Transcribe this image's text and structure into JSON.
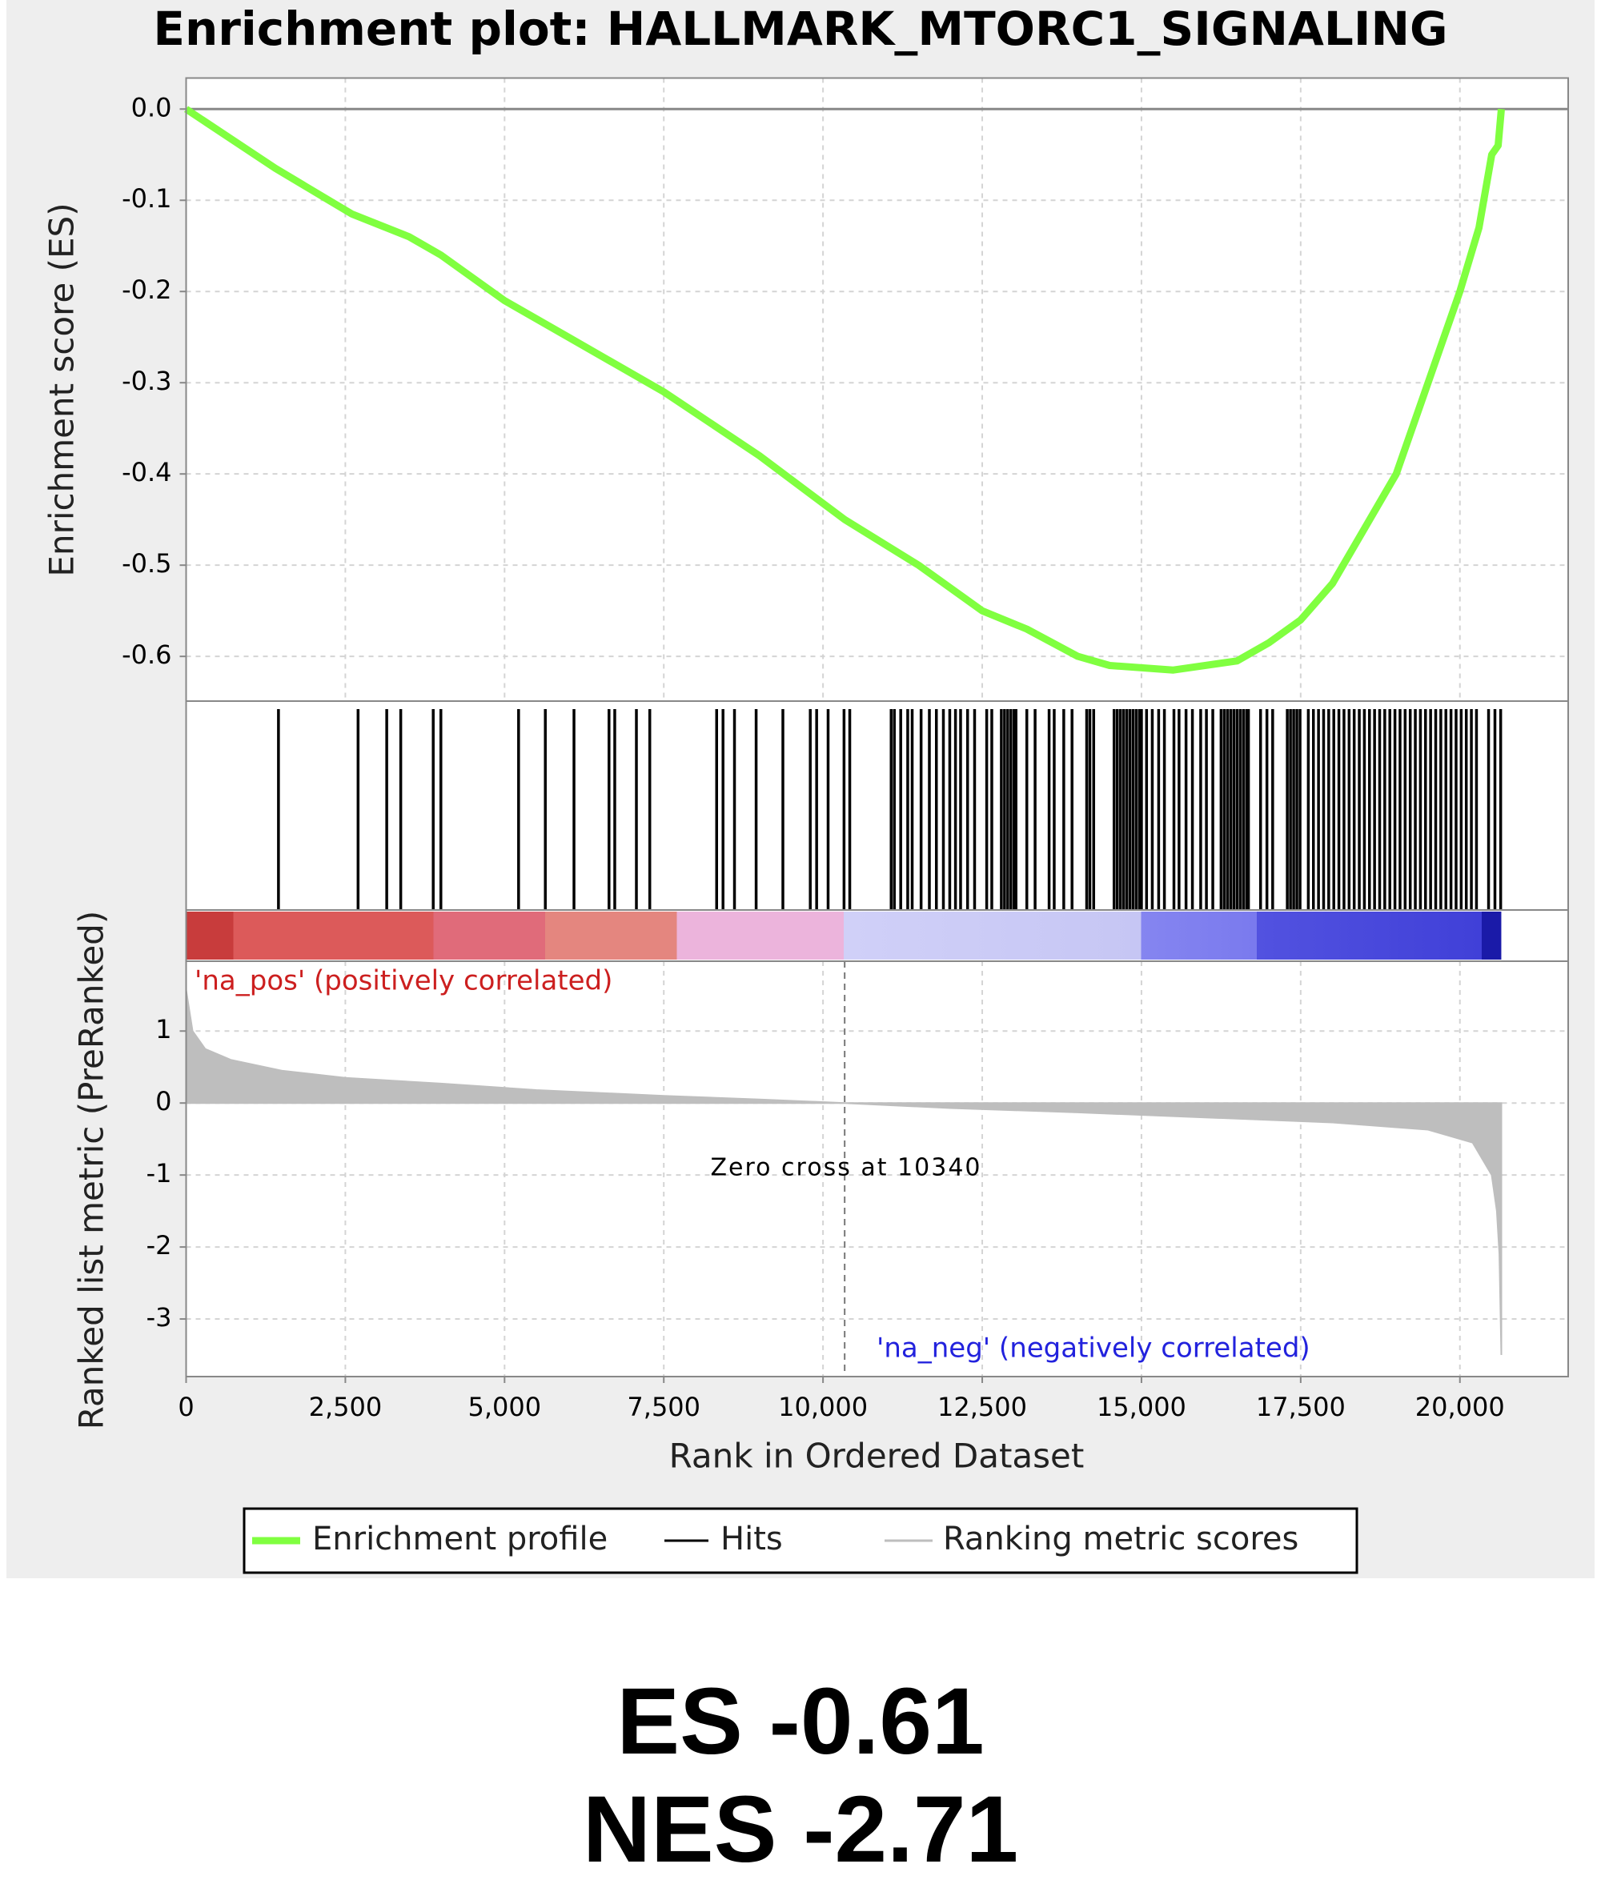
{
  "chart_data": [
    {
      "type": "line",
      "title": "Enrichment plot: HALLMARK_MTORC1_SIGNALING",
      "ylabel": "Enrichment score (ES)",
      "series": [
        {
          "name": "Enrichment profile",
          "color": "#80ff40",
          "x": [
            0,
            1400,
            2600,
            3500,
            4000,
            5000,
            6000,
            7500,
            9000,
            10340,
            11500,
            12500,
            13200,
            14000,
            14500,
            15500,
            16500,
            17000,
            17500,
            18000,
            18500,
            19000,
            19500,
            20000,
            20300,
            20500,
            20600,
            20650
          ],
          "values": [
            0,
            -0.065,
            -0.115,
            -0.14,
            -0.16,
            -0.21,
            -0.25,
            -0.31,
            -0.38,
            -0.45,
            -0.5,
            -0.55,
            -0.57,
            -0.6,
            -0.61,
            -0.615,
            -0.605,
            -0.585,
            -0.56,
            -0.52,
            -0.46,
            -0.4,
            -0.3,
            -0.2,
            -0.13,
            -0.05,
            -0.04,
            0
          ]
        }
      ],
      "ylim": [
        -0.649,
        0.034
      ],
      "yticks": [
        {
          "value": 0,
          "label": "0.0"
        },
        -0.1,
        -0.2,
        -0.3,
        -0.4,
        -0.5,
        -0.6
      ],
      "grid": true
    },
    {
      "type": "hits",
      "series": [
        {
          "name": "Hits",
          "color": "#000000",
          "x": [
            1450,
            2700,
            3150,
            3370,
            3880,
            4000,
            5220,
            5640,
            6090,
            6640,
            6730,
            7070,
            7280,
            8330,
            8430,
            8610,
            8950,
            9370,
            9800,
            9900,
            10080,
            10330,
            10420,
            11070,
            11120,
            11220,
            11330,
            11400,
            11540,
            11670,
            11780,
            11890,
            11990,
            12080,
            12160,
            12270,
            12380,
            12570,
            12650,
            12800,
            12850,
            12900,
            12950,
            13000,
            13030,
            13200,
            13330,
            13550,
            13630,
            13780,
            13910,
            14140,
            14190,
            14250,
            14570,
            14620,
            14670,
            14720,
            14770,
            14820,
            14870,
            14920,
            14970,
            15000,
            15080,
            15170,
            15270,
            15360,
            15510,
            15590,
            15700,
            15800,
            15930,
            16020,
            16120,
            16250,
            16300,
            16350,
            16400,
            16450,
            16500,
            16550,
            16600,
            16650,
            16680,
            16870,
            16970,
            17060,
            17290,
            17340,
            17390,
            17440,
            17490,
            17620,
            17700,
            17780,
            17860,
            17940,
            18020,
            18100,
            18180,
            18260,
            18340,
            18420,
            18500,
            18580,
            18660,
            18740,
            18820,
            18900,
            18980,
            19060,
            19140,
            19220,
            19300,
            19380,
            19460,
            19540,
            19620,
            19700,
            19780,
            19860,
            19940,
            20020,
            20100,
            20180,
            20260,
            20450,
            20550,
            20640
          ]
        }
      ]
    },
    {
      "type": "area",
      "ylabel": "Ranked list metric (PreRanked)",
      "xlabel": "Rank in Ordered Dataset",
      "series": [
        {
          "name": "Ranking metric scores",
          "color": "#bebebe",
          "x": [
            0,
            100,
            300,
            700,
            1500,
            2500,
            4000,
            5500,
            7500,
            9000,
            10340,
            12000,
            14000,
            16000,
            18000,
            19500,
            20200,
            20500,
            20580,
            20620,
            20650
          ],
          "values": [
            1.57,
            1.0,
            0.75,
            0.6,
            0.45,
            0.35,
            0.27,
            0.18,
            0.1,
            0.05,
            0,
            -0.07,
            -0.13,
            -0.2,
            -0.27,
            -0.37,
            -0.55,
            -1.0,
            -1.5,
            -2.1,
            -3.5
          ]
        }
      ],
      "ylim": [
        -3.8,
        1.97
      ],
      "yticks": [
        1,
        0,
        -1,
        -2,
        -3
      ],
      "xlim": [
        0,
        21700
      ],
      "xticks": [
        0,
        {
          "value": 2500,
          "label": "2,500"
        },
        {
          "value": 5000,
          "label": "5,000"
        },
        {
          "value": 7500,
          "label": "7,500"
        },
        {
          "value": 10000,
          "label": "10,000"
        },
        {
          "value": 12500,
          "label": "12,500"
        },
        {
          "value": 15000,
          "label": "15,000"
        },
        {
          "value": 17500,
          "label": "17,500"
        },
        {
          "value": 20000,
          "label": "20,000"
        }
      ],
      "zero_cross": 10340,
      "annotations": [
        "'na_pos' (positively correlated)",
        "Zero cross at 10340",
        "'na_neg' (negatively correlated)"
      ],
      "grid": true
    }
  ],
  "footer": {
    "es": "ES -0.61",
    "nes": "NES -2.71"
  }
}
